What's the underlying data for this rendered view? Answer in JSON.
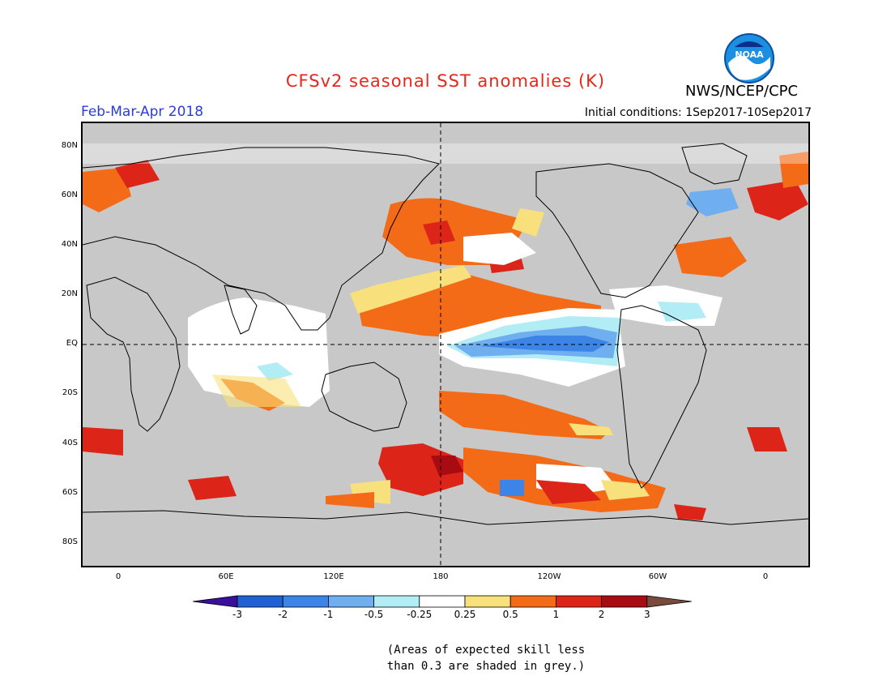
{
  "header": {
    "title": "CFSv2 seasonal SST anomalies (K)",
    "agency": "NWS/NCEP/CPC",
    "season": "Feb-Mar-Apr 2018",
    "initial_conditions": "Initial conditions: 1Sep2017-10Sep2017",
    "logo_text": "NOAA"
  },
  "map": {
    "projection": "cylindrical equidistant, centered on 180",
    "land_color": "#c8c8c8",
    "lat_ticks": [
      "80N",
      "60N",
      "40N",
      "20N",
      "EQ",
      "20S",
      "40S",
      "60S",
      "80S"
    ],
    "lon_ticks": [
      "0",
      "60E",
      "120E",
      "180",
      "120W",
      "60W",
      "0"
    ],
    "reference_lines": [
      "Equator",
      "180 meridian"
    ]
  },
  "colorbar": {
    "tick_labels": [
      "-3",
      "-2",
      "-1",
      "-0.5",
      "-0.25",
      "0.25",
      "0.5",
      "1",
      "2",
      "3"
    ],
    "bins": [
      {
        "range": "< -3",
        "color": "#3a0f9e"
      },
      {
        "range": "-3 to -2",
        "color": "#1f60d3"
      },
      {
        "range": "-2 to -1",
        "color": "#3c85e6"
      },
      {
        "range": "-1 to -0.5",
        "color": "#6faeef"
      },
      {
        "range": "-0.5 to -0.25",
        "color": "#b2ecf5"
      },
      {
        "range": "-0.25 to 0.25",
        "color": "#ffffff"
      },
      {
        "range": "0.25 to 0.5",
        "color": "#f8e07c"
      },
      {
        "range": "0.5 to 1",
        "color": "#f36b16"
      },
      {
        "range": "1 to 2",
        "color": "#dd2418"
      },
      {
        "range": "2 to 3",
        "color": "#a80b12"
      },
      {
        "range": "> 3",
        "color": "#7a4a3c"
      }
    ]
  },
  "footnote": {
    "line1": "(Areas of expected skill less",
    "line2": "than 0.3 are shaded in grey.)"
  }
}
